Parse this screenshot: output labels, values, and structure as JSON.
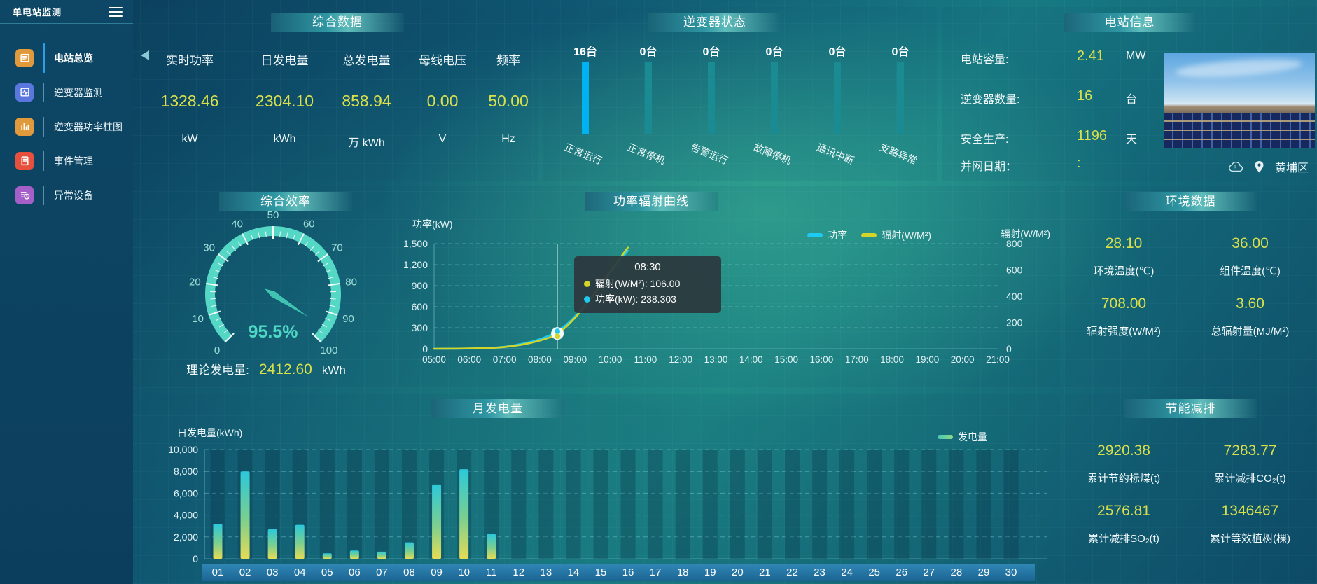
{
  "app": {
    "title": "单电站监测"
  },
  "colors": {
    "accent_yellow": "#d9e04c",
    "highlight_cyan": "#00b2f2",
    "teal_bar": "#1a8b92",
    "gauge_arc": "#55d7c6",
    "line_power": "#1ec9f2",
    "line_radiation": "#d3d628",
    "bar_gradient_top": "#2cc8da",
    "bar_gradient_mid": "#7ccf8f",
    "bar_gradient_bottom": "#e5dc55",
    "legend_generation_from": "#43c8b7",
    "legend_generation_to": "#8fd984"
  },
  "sidebar": {
    "items": [
      {
        "label": "电站总览",
        "icon": "overview-icon",
        "color": "#e09a3c",
        "active": true
      },
      {
        "label": "逆变器监测",
        "icon": "inverter-monitor-icon",
        "color": "#5a77dd",
        "active": false
      },
      {
        "label": "逆变器功率柱图",
        "icon": "inverter-power-bars-icon",
        "color": "#e09a3c",
        "active": false
      },
      {
        "label": "事件管理",
        "icon": "event-manage-icon",
        "color": "#e8503e",
        "active": false
      },
      {
        "label": "异常设备",
        "icon": "abnormal-device-icon",
        "color": "#a460c8",
        "active": false
      }
    ]
  },
  "summary": {
    "title": "综合数据",
    "metrics": [
      {
        "label": "实时功率",
        "value": "1328.46",
        "unit": "kW"
      },
      {
        "label": "日发电量",
        "value": "2304.10",
        "unit": "kWh"
      },
      {
        "label": "总发电量",
        "value": "858.94",
        "unit": "万 kWh"
      },
      {
        "label": "母线电压",
        "value": "0.00",
        "unit": "V"
      },
      {
        "label": "频率",
        "value": "50.00",
        "unit": "Hz"
      }
    ]
  },
  "inverter_status": {
    "title": "逆变器状态",
    "bars": [
      {
        "count_label": "16台",
        "label": "正常运行",
        "highlight": true
      },
      {
        "count_label": "0台",
        "label": "正常停机",
        "highlight": false
      },
      {
        "count_label": "0台",
        "label": "告警运行",
        "highlight": false
      },
      {
        "count_label": "0台",
        "label": "故障停机",
        "highlight": false
      },
      {
        "count_label": "0台",
        "label": "通讯中断",
        "highlight": false
      },
      {
        "count_label": "0台",
        "label": "支路异常",
        "highlight": false
      }
    ]
  },
  "station_info": {
    "title": "电站信息",
    "rows": [
      {
        "label": "电站容量:",
        "value": "2.41",
        "unit": "MW"
      },
      {
        "label": "逆变器数量:",
        "value": "16",
        "unit": "台"
      },
      {
        "label": "安全生产:",
        "value": "1196",
        "unit": "天"
      },
      {
        "label": "并网日期：",
        "value": ":",
        "unit": ""
      }
    ],
    "location": "黄埔区"
  },
  "efficiency": {
    "title": "综合效率",
    "theory_label": "理论发电量:",
    "theory_value": "2412.60",
    "theory_unit": "kWh"
  },
  "environment": {
    "title": "环境数据",
    "metrics": [
      {
        "value": "28.10",
        "label": "环境温度(℃)"
      },
      {
        "value": "36.00",
        "label": "组件温度(℃)"
      },
      {
        "value": "708.00",
        "label": "辐射强度(W/M²)"
      },
      {
        "value": "3.60",
        "label": "总辐射量(MJ/M²)"
      }
    ]
  },
  "saving": {
    "title": "节能减排",
    "metrics": [
      {
        "value": "2920.38",
        "label": "累计节约标煤(t)"
      },
      {
        "value": "7283.77",
        "label": "累计减排CO₂(t)"
      },
      {
        "value": "2576.81",
        "label": "累计减排SO₂(t)"
      },
      {
        "value": "1346467",
        "label": "累计等效植树(棵)"
      }
    ]
  },
  "chart_data": [
    {
      "id": "efficiency_gauge",
      "type": "gauge",
      "title": "综合效率",
      "min": 0,
      "max": 100,
      "value": 95.5,
      "display": "95.5%",
      "tick_labels": [
        "0",
        "10",
        "20",
        "30",
        "40",
        "50",
        "60",
        "70",
        "80",
        "90",
        "100"
      ]
    },
    {
      "id": "power_radiation_curve",
      "type": "line",
      "title": "功率辐射曲线",
      "x_range_hours": [
        5,
        21
      ],
      "x_ticks": [
        "05:00",
        "06:00",
        "07:00",
        "08:00",
        "09:00",
        "10:00",
        "11:00",
        "12:00",
        "13:00",
        "14:00",
        "15:00",
        "16:00",
        "17:00",
        "18:00",
        "19:00",
        "20:00",
        "21:00"
      ],
      "left_axis": {
        "name": "功率(kW)",
        "max": 1500,
        "ticks": [
          0,
          300,
          600,
          900,
          1200,
          1500
        ],
        "tick_labels": [
          "0",
          "300",
          "600",
          "900",
          "1,200",
          "1,500"
        ]
      },
      "right_axis": {
        "name": "辐射(W/M²)",
        "max": 800,
        "ticks": [
          0,
          200,
          400,
          600,
          800
        ],
        "tick_labels": [
          "0",
          "200",
          "400",
          "600",
          "800"
        ]
      },
      "legend": [
        {
          "name": "功率",
          "color": "#1ec9f2"
        },
        {
          "name": "辐射(W/M²)",
          "color": "#d3d628"
        }
      ],
      "series": [
        {
          "name": "功率",
          "axis": "left",
          "color": "#1ec9f2",
          "points": [
            [
              5,
              0
            ],
            [
              5.5,
              1
            ],
            [
              6,
              3
            ],
            [
              6.5,
              8
            ],
            [
              7,
              25
            ],
            [
              7.5,
              70
            ],
            [
              8,
              130
            ],
            [
              8.5,
              238.303
            ],
            [
              9,
              450
            ],
            [
              9.5,
              750
            ],
            [
              10,
              1080
            ],
            [
              10.5,
              1400
            ]
          ]
        },
        {
          "name": "辐射",
          "axis": "right",
          "color": "#d3d628",
          "points": [
            [
              5,
              0
            ],
            [
              5.5,
              0
            ],
            [
              6,
              2
            ],
            [
              6.5,
              5
            ],
            [
              7,
              12
            ],
            [
              7.5,
              30
            ],
            [
              8,
              60
            ],
            [
              8.5,
              106
            ],
            [
              9,
              230
            ],
            [
              9.5,
              400
            ],
            [
              10,
              590
            ],
            [
              10.5,
              770
            ]
          ]
        }
      ],
      "tooltip": {
        "time": "08:30",
        "crosshair_hour": 8.5,
        "rows": [
          {
            "dot": "#d3d628",
            "text": "辐射(W/M²): 106.00"
          },
          {
            "dot": "#1ec9f2",
            "text": "功率(kW): 238.303"
          }
        ]
      }
    },
    {
      "id": "monthly_generation",
      "type": "bar",
      "title": "月发电量",
      "y_name": "日发电量(kWh)",
      "y_max": 10000,
      "y_ticks": [
        0,
        2000,
        4000,
        6000,
        8000,
        10000
      ],
      "y_tick_labels": [
        "0",
        "2,000",
        "4,000",
        "6,000",
        "8,000",
        "10,000"
      ],
      "legend": [
        {
          "name": "发电量"
        }
      ],
      "categories": [
        "01",
        "02",
        "03",
        "04",
        "05",
        "06",
        "07",
        "08",
        "09",
        "10",
        "11",
        "12",
        "13",
        "14",
        "15",
        "16",
        "17",
        "18",
        "19",
        "20",
        "21",
        "22",
        "23",
        "24",
        "25",
        "26",
        "27",
        "28",
        "29",
        "30"
      ],
      "values": [
        3200,
        8000,
        2700,
        3100,
        500,
        750,
        650,
        1500,
        6800,
        8200,
        2250,
        0,
        0,
        0,
        0,
        0,
        0,
        0,
        0,
        0,
        0,
        0,
        0,
        0,
        0,
        0,
        0,
        0,
        0,
        0
      ]
    }
  ]
}
